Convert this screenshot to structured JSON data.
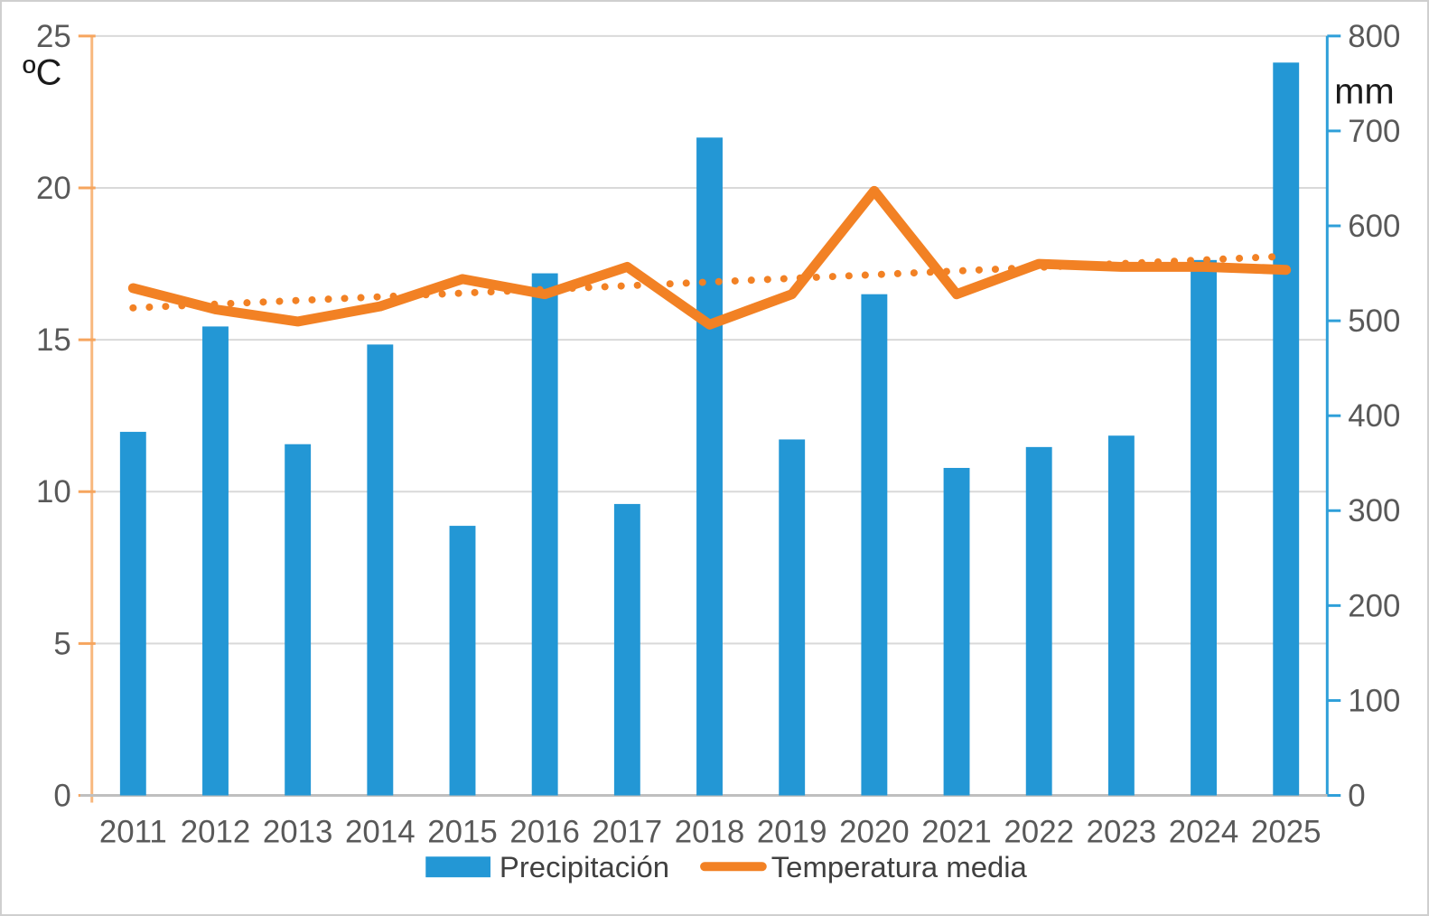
{
  "chart_data": {
    "type": "bar+line combo",
    "title": "",
    "categories": [
      "2011",
      "2012",
      "2013",
      "2014",
      "2015",
      "2016",
      "2017",
      "2018",
      "2019",
      "2020",
      "2021",
      "2022",
      "2023",
      "2024",
      "2025"
    ],
    "series": [
      {
        "name": "Precipitación",
        "type": "bar",
        "axis": "right",
        "unit": "mm",
        "color": "#2397d5",
        "values": [
          383,
          494,
          370,
          475,
          284,
          550,
          307,
          693,
          375,
          528,
          345,
          367,
          379,
          564,
          772
        ]
      },
      {
        "name": "Temperatura media",
        "type": "line",
        "axis": "left",
        "unit": "ºC",
        "color": "#f28124",
        "values": [
          16.7,
          16.0,
          15.6,
          16.1,
          17.0,
          16.5,
          17.4,
          15.5,
          16.5,
          19.9,
          16.5,
          17.5,
          17.4,
          17.4,
          17.3
        ]
      },
      {
        "name": "trend",
        "type": "dotted-trendline",
        "axis": "left",
        "color": "#f28124",
        "endpoint_values": [
          16.05,
          17.75
        ]
      }
    ],
    "left_axis": {
      "label": "ºC",
      "min": 0,
      "max": 25,
      "tick_step": 5,
      "ticks": [
        "0",
        "5",
        "10",
        "15",
        "20",
        "25"
      ],
      "axis_color": "#f8b87e",
      "tick_color": "#f6a55e"
    },
    "right_axis": {
      "label": "mm",
      "min": 0,
      "max": 800,
      "tick_step": 100,
      "ticks": [
        "0",
        "100",
        "200",
        "300",
        "400",
        "500",
        "600",
        "700",
        "800"
      ],
      "axis_color": "#2e9fd9",
      "tick_color": "#2e9fd9"
    },
    "grid": true,
    "gridline_color": "#d9d9d9",
    "bottom_axis_color": "#bfbfbf",
    "tick_label_color": "#595959",
    "legend_position": "bottom"
  },
  "legend": [
    {
      "label": "Precipitación",
      "swatch": "bar-swatch",
      "color": "#2397d5"
    },
    {
      "label": "Temperatura media",
      "swatch": "line-swatch",
      "color": "#f28124"
    }
  ]
}
